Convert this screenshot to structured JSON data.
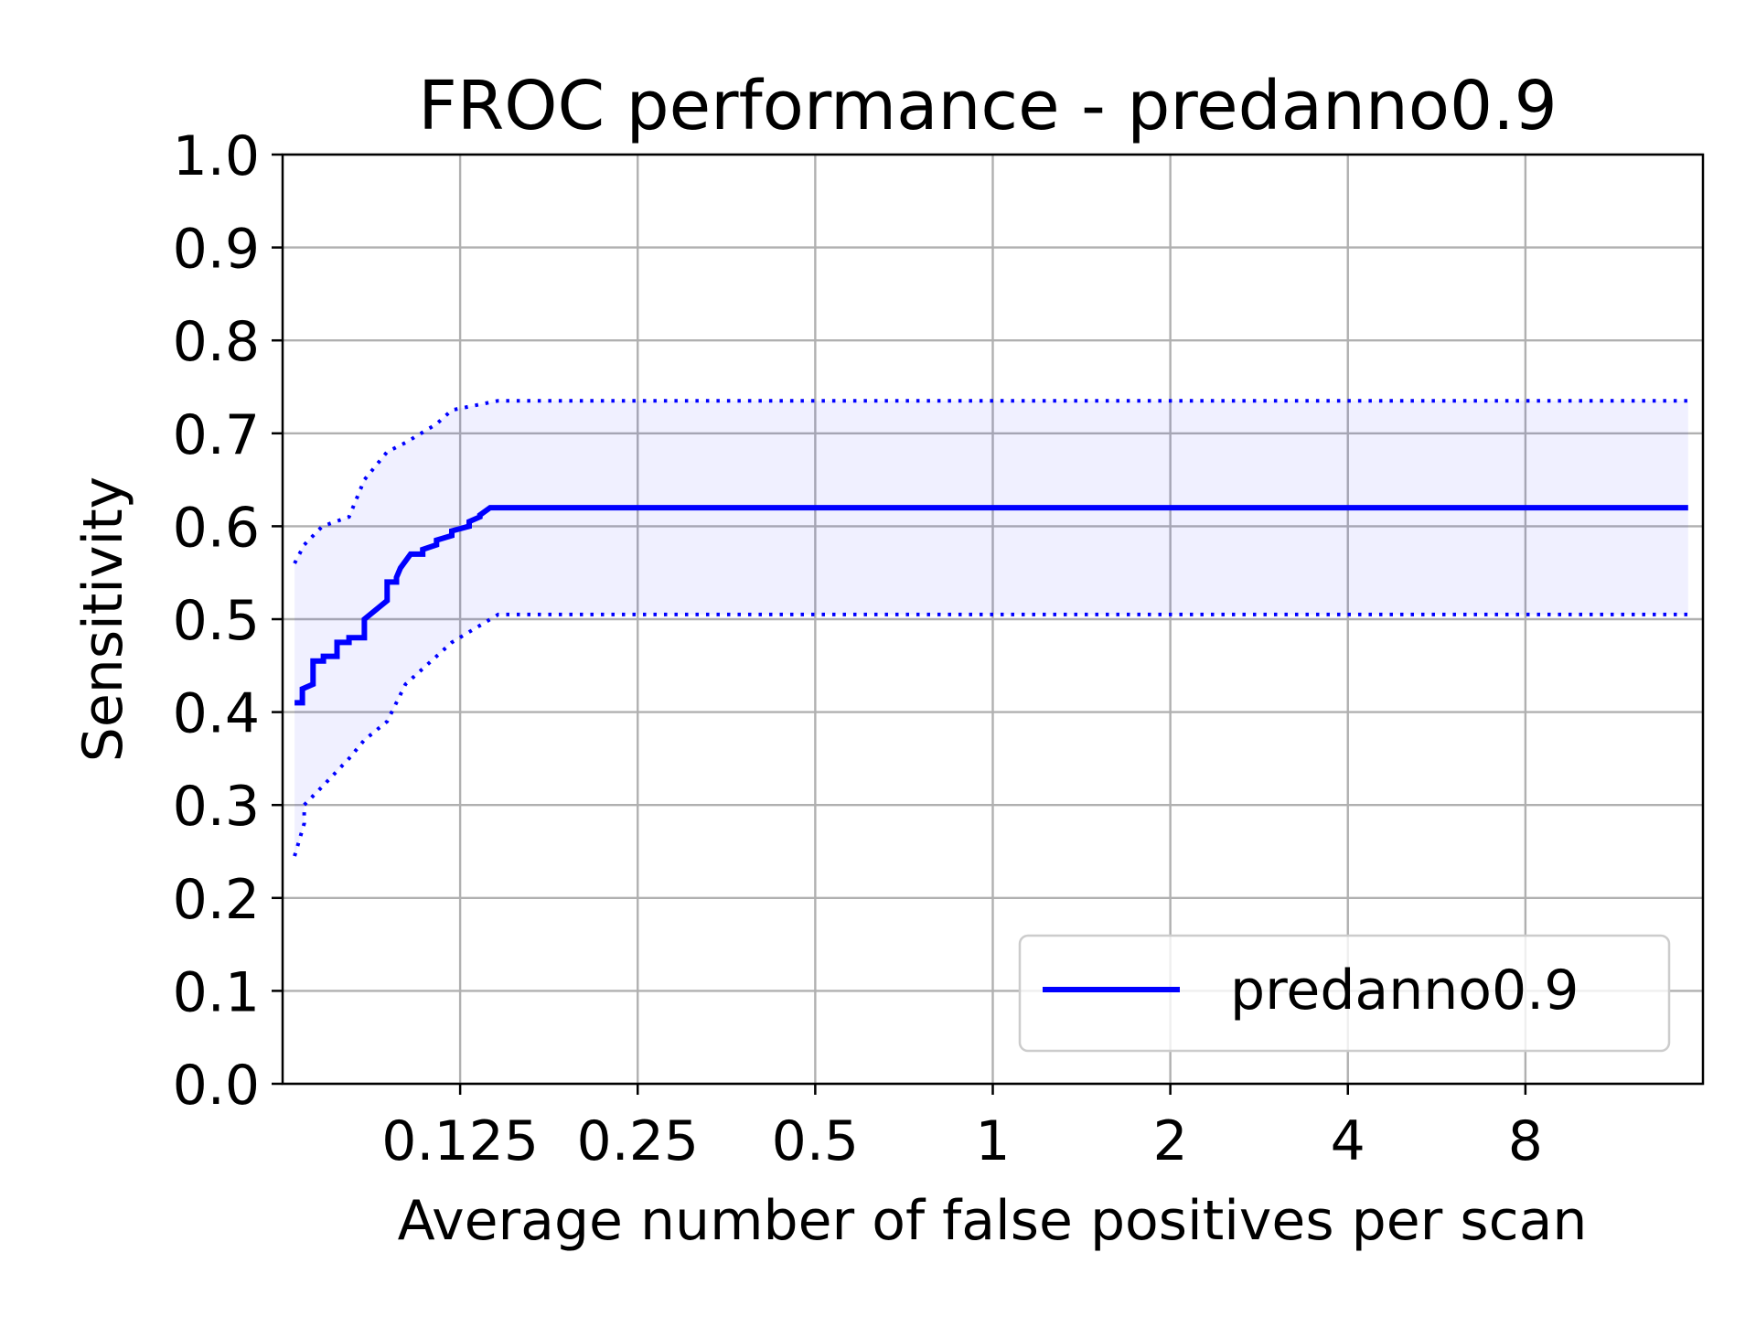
{
  "chart_data": {
    "type": "line",
    "title": "FROC performance - predanno0.9",
    "xlabel": "Average number of false positives per scan",
    "ylabel": "Sensitivity",
    "xscale": "log2",
    "xlim": [
      0.0625,
      16
    ],
    "ylim": [
      0.0,
      1.0
    ],
    "grid": true,
    "legend_position": "lower right",
    "x_ticks": [
      0.125,
      0.25,
      0.5,
      1,
      2,
      4,
      8
    ],
    "x_tick_labels": [
      "0.125",
      "0.25",
      "0.5",
      "1",
      "2",
      "4",
      "8"
    ],
    "y_ticks": [
      0.0,
      0.1,
      0.2,
      0.3,
      0.4,
      0.5,
      0.6,
      0.7,
      0.8,
      0.9,
      1.0
    ],
    "y_tick_labels": [
      "0.0",
      "0.1",
      "0.2",
      "0.3",
      "0.4",
      "0.5",
      "0.6",
      "0.7",
      "0.8",
      "0.9",
      "1.0"
    ],
    "colors": {
      "series": "#0000ff",
      "band": "#0000ff",
      "grid": "#b0b0b0"
    },
    "series": [
      {
        "name": "predanno0.9",
        "style": "solid",
        "x": [
          0.0655,
          0.0675,
          0.0675,
          0.0704,
          0.0704,
          0.0733,
          0.0733,
          0.0773,
          0.0773,
          0.081,
          0.081,
          0.086,
          0.086,
          0.094,
          0.094,
          0.0975,
          0.0975,
          0.099,
          0.103,
          0.108,
          0.108,
          0.114,
          0.114,
          0.121,
          0.121,
          0.1295,
          0.1295,
          0.135,
          0.135,
          0.1405,
          0.145,
          15.1
        ],
        "y": [
          0.41,
          0.41,
          0.425,
          0.43,
          0.455,
          0.455,
          0.46,
          0.46,
          0.475,
          0.475,
          0.48,
          0.48,
          0.5,
          0.52,
          0.54,
          0.54,
          0.545,
          0.555,
          0.57,
          0.57,
          0.575,
          0.58,
          0.585,
          0.59,
          0.595,
          0.6,
          0.605,
          0.61,
          0.612,
          0.62,
          0.62,
          0.62
        ]
      }
    ],
    "band": {
      "upper": {
        "x": [
          0.0655,
          0.068,
          0.073,
          0.081,
          0.086,
          0.094,
          0.101,
          0.114,
          0.121,
          0.145,
          15.1
        ],
        "y": [
          0.56,
          0.58,
          0.6,
          0.61,
          0.65,
          0.68,
          0.69,
          0.71,
          0.725,
          0.735,
          0.735
        ]
      },
      "lower": {
        "x": [
          0.0655,
          0.068,
          0.068,
          0.073,
          0.081,
          0.086,
          0.094,
          0.101,
          0.114,
          0.121,
          0.145,
          15.1
        ],
        "y": [
          0.245,
          0.28,
          0.3,
          0.32,
          0.35,
          0.37,
          0.39,
          0.43,
          0.46,
          0.475,
          0.505,
          0.505
        ]
      }
    }
  }
}
